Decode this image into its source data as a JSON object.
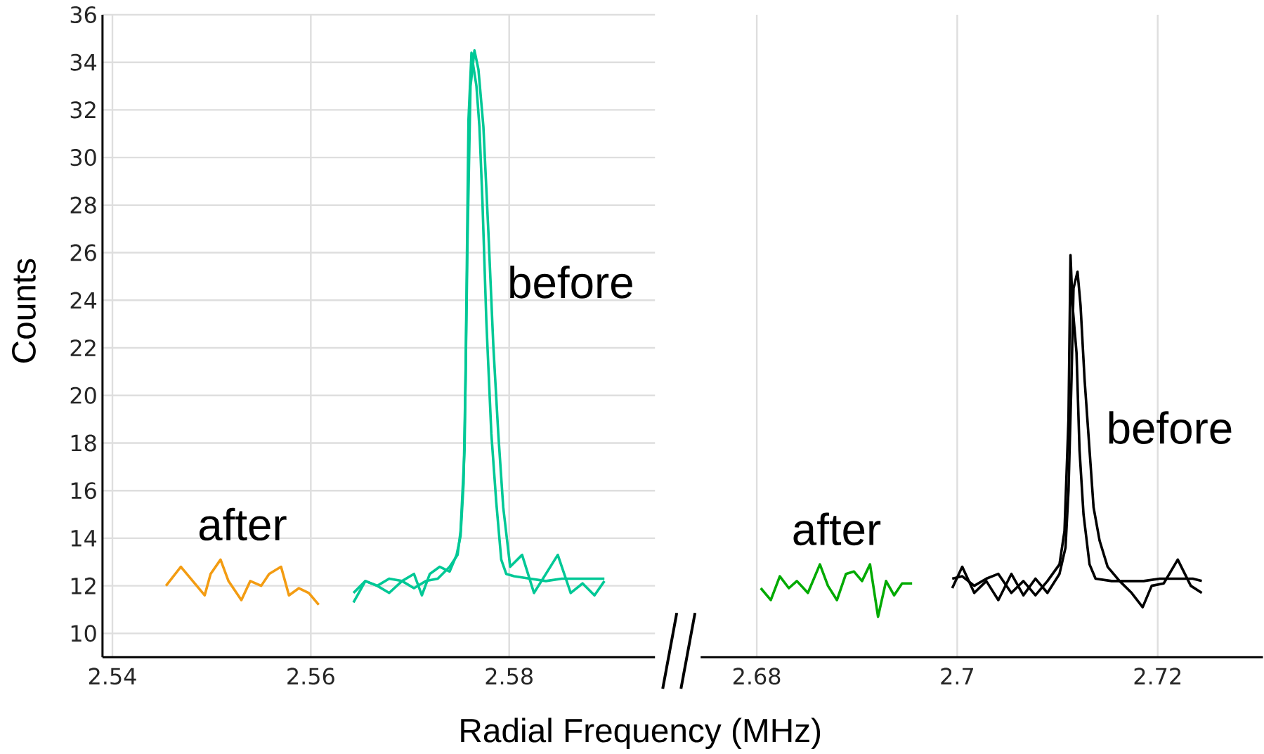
{
  "chart_data": [
    {
      "type": "line",
      "xlabel": "Radial Frequency (MHz)",
      "ylabel": "Counts",
      "grid": true,
      "xlim": [
        2.539,
        2.5947
      ],
      "ylim": [
        9,
        36
      ],
      "xticks": [
        2.54,
        2.56,
        2.58
      ],
      "yticks": [
        10,
        12,
        14,
        16,
        18,
        20,
        22,
        24,
        26,
        28,
        30,
        32,
        34,
        36
      ],
      "series": [
        {
          "name": "after",
          "color": "#f39c12",
          "x": [
            2.5454,
            2.5469,
            2.5481,
            2.5493,
            2.5499,
            2.5509,
            2.5517,
            2.553,
            2.5539,
            2.555,
            2.5558,
            2.557,
            2.5578,
            2.5588,
            2.5598,
            2.5608
          ],
          "values": [
            12.0,
            12.8,
            12.2,
            11.6,
            12.5,
            13.1,
            12.2,
            11.4,
            12.2,
            12.0,
            12.5,
            12.8,
            11.6,
            11.9,
            11.7,
            11.2
          ]
        },
        {
          "name": "before",
          "color": "#00c896",
          "x": [
            2.5643,
            2.5655,
            2.5667,
            2.5679,
            2.5692,
            2.5704,
            2.5712,
            2.572,
            2.573,
            2.574,
            2.5747,
            2.5751,
            2.5754,
            2.5756,
            2.5759,
            2.5762,
            2.5764,
            2.5767,
            2.577,
            2.5773,
            2.5777,
            2.5782,
            2.5787,
            2.5792,
            2.5797,
            2.5805,
            2.5821,
            2.5837,
            2.5853,
            2.587,
            2.5886,
            2.5896
          ],
          "values": [
            11.7,
            12.2,
            12.0,
            12.3,
            12.2,
            12.5,
            11.6,
            12.5,
            12.8,
            12.6,
            13.3,
            14.1,
            16.3,
            20.7,
            31.6,
            34.4,
            33.8,
            33.0,
            31.3,
            28.2,
            23.1,
            18.4,
            15.5,
            13.1,
            12.5,
            12.4,
            12.3,
            12.2,
            12.3,
            12.3,
            12.3,
            12.3
          ]
        },
        {
          "color": "#00c896",
          "x": [
            2.5896,
            2.5886,
            2.5874,
            2.5862,
            2.5849,
            2.5837,
            2.5825,
            2.5813,
            2.5801,
            2.5794,
            2.5789,
            2.5784,
            2.5779,
            2.5774,
            2.5769,
            2.5765,
            2.5761,
            2.5758,
            2.5755,
            2.5751,
            2.5748,
            2.574,
            2.5728,
            2.5716,
            2.5704,
            2.5692,
            2.5679,
            2.5667,
            2.5655,
            2.5643
          ],
          "values": [
            12.2,
            11.6,
            12.1,
            11.7,
            13.3,
            12.5,
            11.7,
            13.3,
            12.8,
            15.3,
            18.4,
            22.1,
            26.9,
            31.3,
            33.7,
            34.5,
            33.0,
            26.5,
            17.7,
            14.3,
            13.3,
            12.8,
            12.3,
            12.2,
            11.9,
            12.2,
            11.7,
            12.0,
            12.2,
            11.3
          ]
        }
      ]
    },
    {
      "type": "line",
      "grid": true,
      "tick_labels": "x",
      "xlim": [
        2.6744,
        2.7305
      ],
      "ylim": [
        9,
        36
      ],
      "xticks": [
        2.68,
        2.7,
        2.72
      ],
      "yticks": [
        10,
        12,
        14,
        16,
        18,
        20,
        22,
        24,
        26,
        28,
        30,
        32,
        34,
        36
      ],
      "series": [
        {
          "name": "after",
          "color": "#00aa00",
          "x": [
            2.6804,
            2.6814,
            2.6823,
            2.6832,
            2.684,
            2.6851,
            2.6863,
            2.6871,
            2.688,
            2.6889,
            2.6897,
            2.6905,
            2.6913,
            2.6921,
            2.6929,
            2.6937,
            2.6945,
            2.6955
          ],
          "values": [
            11.9,
            11.4,
            12.4,
            11.9,
            12.2,
            11.7,
            12.9,
            12.0,
            11.4,
            12.5,
            12.6,
            12.2,
            12.9,
            10.7,
            12.2,
            11.6,
            12.1,
            12.1
          ]
        },
        {
          "name": "before",
          "color": "#000000",
          "x": [
            2.6995,
            2.7005,
            2.7017,
            2.7029,
            2.7041,
            2.7054,
            2.7066,
            2.7078,
            2.709,
            2.7102,
            2.7107,
            2.7111,
            2.7113,
            2.7115,
            2.7119,
            2.7122,
            2.7126,
            2.7132,
            2.7138,
            2.7154,
            2.717,
            2.7186,
            2.7202,
            2.7218,
            2.7235,
            2.7244
          ],
          "values": [
            12.3,
            12.4,
            12.0,
            12.3,
            12.5,
            11.7,
            12.2,
            11.6,
            12.2,
            12.9,
            14.3,
            19.0,
            25.9,
            23.8,
            21.8,
            17.7,
            15.0,
            12.9,
            12.3,
            12.2,
            12.2,
            12.2,
            12.3,
            12.3,
            12.3,
            12.2
          ]
        },
        {
          "color": "#000000",
          "x": [
            2.7244,
            2.7233,
            2.722,
            2.7206,
            2.7194,
            2.7185,
            2.7174,
            2.7162,
            2.715,
            2.7142,
            2.7136,
            2.7132,
            2.7127,
            2.7123,
            2.712,
            2.7116,
            2.7114,
            2.7111,
            2.7108,
            2.7102,
            2.709,
            2.7078,
            2.7066,
            2.7054,
            2.7041,
            2.7029,
            2.7017,
            2.7005,
            2.6995
          ],
          "values": [
            11.7,
            12.0,
            13.1,
            12.1,
            12.0,
            11.1,
            11.7,
            12.2,
            12.8,
            13.9,
            15.3,
            17.7,
            20.7,
            23.8,
            25.2,
            24.5,
            20.7,
            16.0,
            13.6,
            12.5,
            11.7,
            12.3,
            11.6,
            12.5,
            11.4,
            12.2,
            11.7,
            12.8,
            11.9
          ]
        }
      ]
    }
  ]
}
